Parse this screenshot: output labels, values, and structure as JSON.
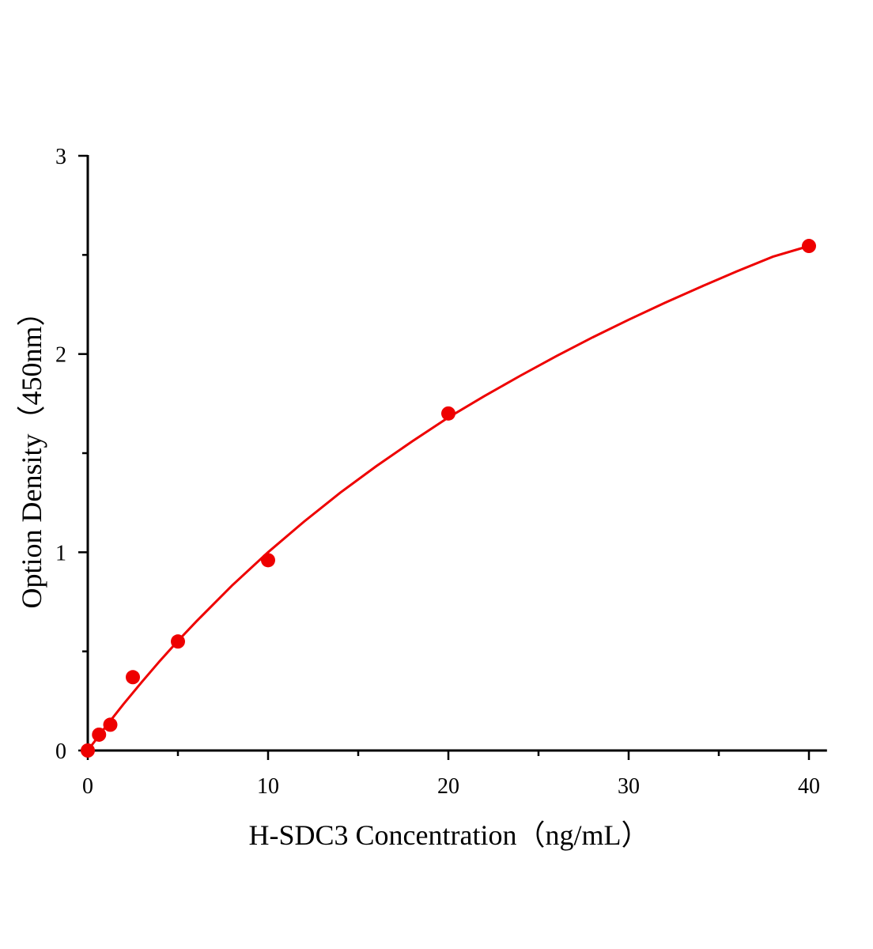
{
  "chart_data": {
    "type": "scatter",
    "title": "",
    "xlabel": "H-SDC3 Concentration（ng/mL）",
    "ylabel": "Option Density（450nm）",
    "xlim": [
      0,
      41
    ],
    "ylim": [
      0,
      3
    ],
    "x_ticks": [
      "0",
      "10",
      "20",
      "30",
      "40"
    ],
    "y_ticks": [
      "0",
      "1",
      "2",
      "3"
    ],
    "grid": false,
    "legend": "none",
    "color": "#ee0000",
    "points": {
      "x": [
        0,
        0.625,
        1.25,
        2.5,
        5,
        10,
        20,
        40
      ],
      "y": [
        0.0,
        0.08,
        0.13,
        0.37,
        0.55,
        0.96,
        1.7,
        2.545
      ]
    },
    "fit_curve": {
      "x": [
        0,
        1,
        2,
        3,
        4,
        5,
        6,
        8,
        10,
        12,
        14,
        16,
        18,
        20,
        22,
        24,
        26,
        28,
        30,
        32,
        34,
        36,
        38,
        40
      ],
      "y": [
        0,
        0.121,
        0.236,
        0.346,
        0.452,
        0.553,
        0.649,
        0.832,
        1.0,
        1.155,
        1.3,
        1.434,
        1.56,
        1.68,
        1.788,
        1.891,
        1.99,
        2.084,
        2.173,
        2.258,
        2.339,
        2.417,
        2.491,
        2.545
      ]
    }
  }
}
